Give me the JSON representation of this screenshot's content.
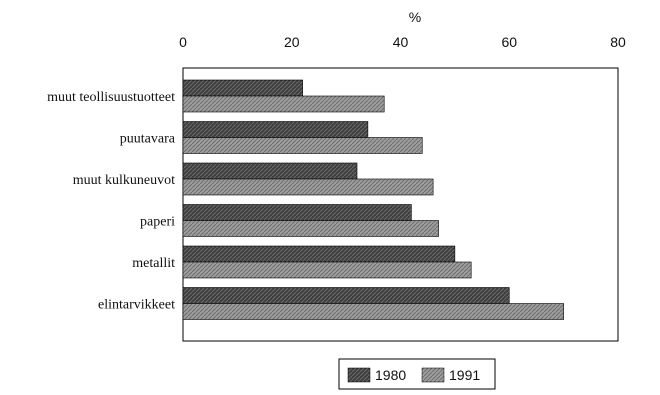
{
  "chart_data": {
    "type": "bar",
    "orientation": "horizontal",
    "unit_label": "%",
    "xlim": [
      0,
      80
    ],
    "x_ticks": [
      "0",
      "20",
      "40",
      "60",
      "80"
    ],
    "categories": [
      "muut teollisuustuotteet",
      "puutavara",
      "muut kulkuneuvot",
      "paperi",
      "metallit",
      "elintarvikkeet"
    ],
    "series": [
      {
        "name": "1980",
        "color": "#4a4a4a",
        "values": [
          22,
          34,
          32,
          42,
          50,
          60
        ]
      },
      {
        "name": "1991",
        "color": "#9a9a9a",
        "values": [
          37,
          44,
          46,
          47,
          53,
          70
        ]
      }
    ],
    "legend_position": "bottom",
    "grid": false
  }
}
